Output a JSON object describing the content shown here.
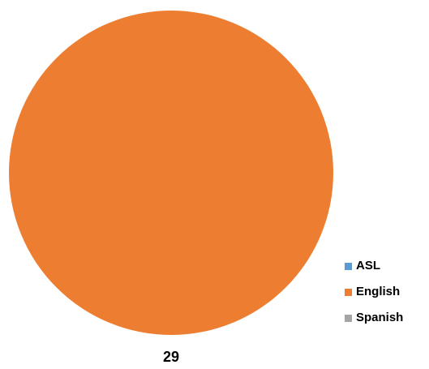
{
  "chart_data": {
    "type": "pie",
    "title": "",
    "categories": [
      "ASL",
      "English",
      "Spanish"
    ],
    "values": [
      0,
      29,
      0
    ],
    "colors": [
      "#5B9BD5",
      "#ED7D31",
      "#A5A5A5"
    ],
    "data_labels": [
      "",
      "29",
      ""
    ],
    "legend_position": "right"
  }
}
